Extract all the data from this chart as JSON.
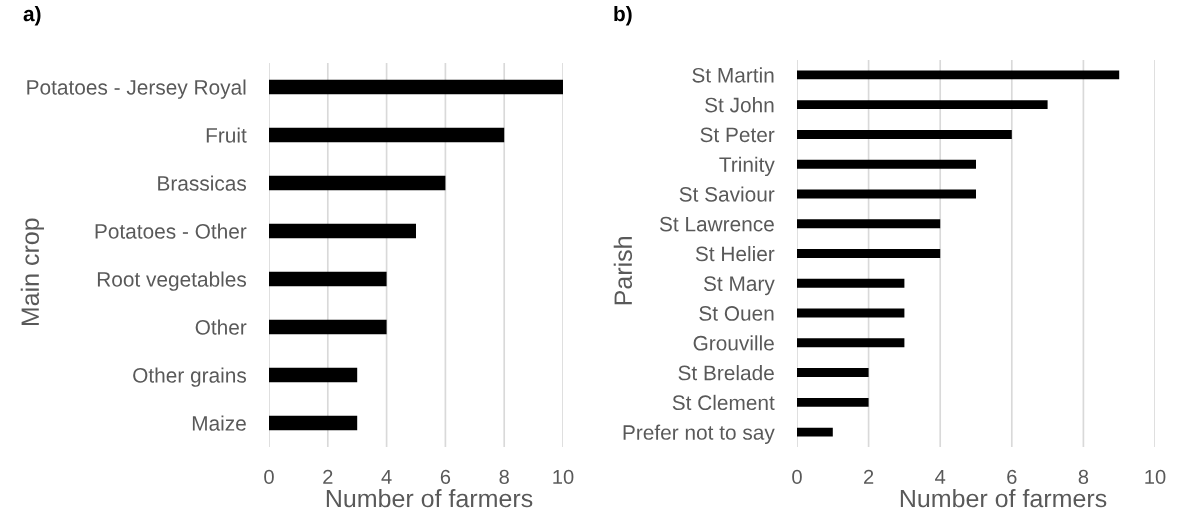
{
  "chart_data": [
    {
      "type": "bar",
      "orientation": "horizontal",
      "title": "a)",
      "xlabel": "Number of farmers",
      "ylabel": "Main crop",
      "categories": [
        "Potatoes - Jersey Royal",
        "Fruit",
        "Brassicas",
        "Potatoes - Other",
        "Root vegetables",
        "Other",
        "Other grains",
        "Maize"
      ],
      "values": [
        10,
        8,
        6,
        5,
        4,
        4,
        3,
        3
      ],
      "color": "#000000",
      "xlim": [
        0,
        10
      ],
      "xticks": [
        0,
        2,
        4,
        6,
        8,
        10
      ],
      "grid": "x"
    },
    {
      "type": "bar",
      "orientation": "horizontal",
      "title": "b)",
      "xlabel": "Number of farmers",
      "ylabel": "Parish",
      "categories": [
        "St Martin",
        "St John",
        "St Peter",
        "Trinity",
        "St Saviour",
        "St Lawrence",
        "St Helier",
        "St Mary",
        "St Ouen",
        "Grouville",
        "St Brelade",
        "St Clement",
        "Prefer not to say"
      ],
      "values": [
        9,
        7,
        6,
        5,
        5,
        4,
        4,
        3,
        3,
        3,
        2,
        2,
        1
      ],
      "color": "#000000",
      "xlim": [
        0,
        10
      ],
      "xticks": [
        0,
        2,
        4,
        6,
        8,
        10
      ],
      "grid": "x"
    }
  ]
}
